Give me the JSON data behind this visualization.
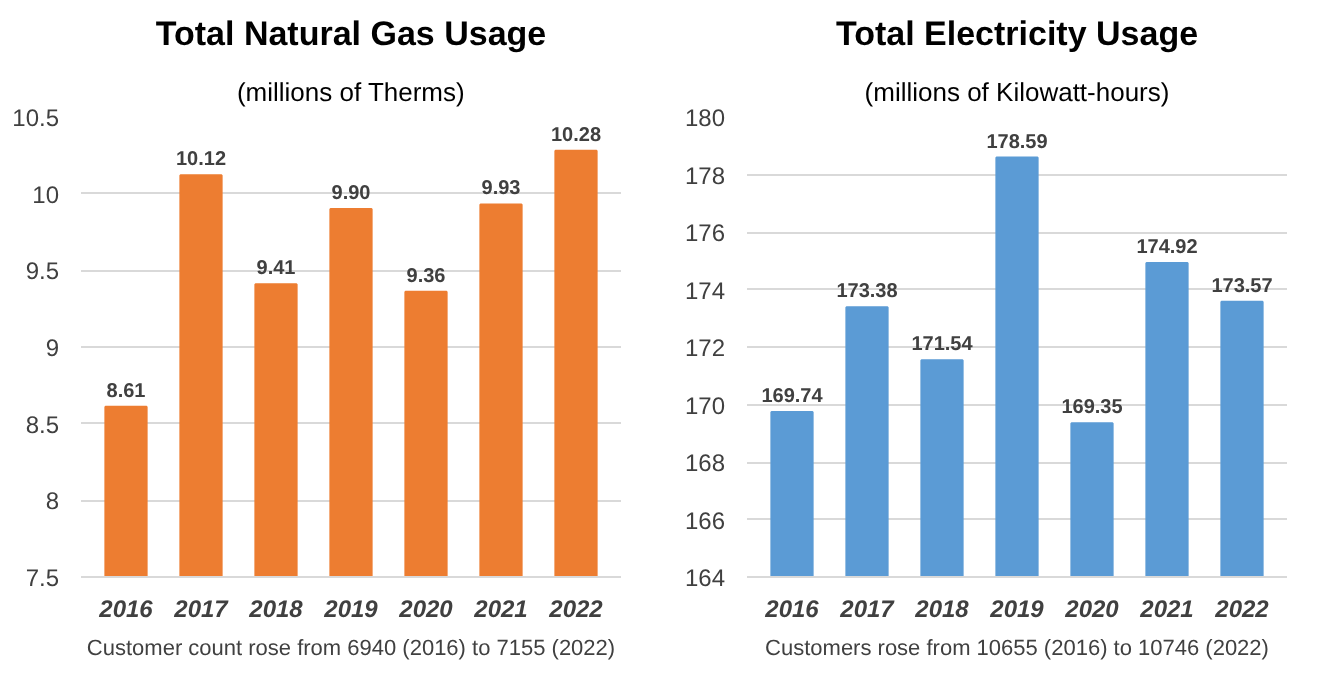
{
  "chart_data": [
    {
      "type": "bar",
      "title": "Total Natural Gas Usage",
      "subtitle": "(millions of Therms)",
      "categories": [
        "2016",
        "2017",
        "2018",
        "2019",
        "2020",
        "2021",
        "2022"
      ],
      "series": [
        {
          "color": "#ed7d31",
          "values": [
            8.61,
            10.12,
            9.41,
            9.9,
            9.36,
            9.93,
            10.28
          ],
          "value_labels": [
            "8.61",
            "10.12",
            "9.41",
            "9.90",
            "9.36",
            "9.93",
            "10.28"
          ]
        }
      ],
      "ylim": [
        7.5,
        10.5
      ],
      "yticks": [
        7.5,
        8,
        8.5,
        9,
        9.5,
        10,
        10.5
      ],
      "grid": "y",
      "annotations": [
        "Customer count rose from 6940 (2016) to 7155 (2022)"
      ]
    },
    {
      "type": "bar",
      "title": "Total Electricity Usage",
      "subtitle": "(millions of Kilowatt-hours)",
      "categories": [
        "2016",
        "2017",
        "2018",
        "2019",
        "2020",
        "2021",
        "2022"
      ],
      "series": [
        {
          "color": "#5b9bd5",
          "values": [
            169.74,
            173.38,
            171.54,
            178.59,
            169.35,
            174.92,
            173.57
          ],
          "value_labels": [
            "169.74",
            "173.38",
            "171.54",
            "178.59",
            "169.35",
            "174.92",
            "173.57"
          ]
        }
      ],
      "ylim": [
        164,
        180
      ],
      "yticks": [
        164,
        166,
        168,
        170,
        172,
        174,
        176,
        178,
        180
      ],
      "grid": "y",
      "annotations": [
        "Customers rose from 10655 (2016) to 10746 (2022)"
      ]
    }
  ]
}
